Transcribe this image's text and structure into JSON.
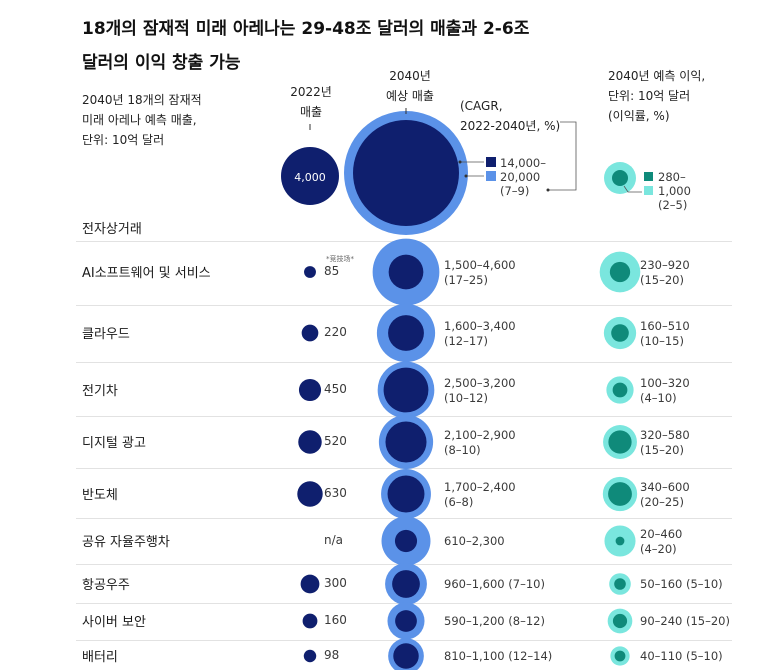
{
  "title": "18개의 잠재적 미래 아레나는 29-48조 달러의 매출과 2-6조 달러의 이익 창출 가능",
  "title_lines": [
    "18개의 잠재적 미래 아레나는 29-48조 달러의 매출과 2-6조",
    "달러의 이익 창출 가능"
  ],
  "legend": {
    "note_lines": [
      "2040년 18개의 잠재적",
      "미래 아레나 예측 매출,",
      "단위: 10억 달러"
    ],
    "col2022_lines": [
      "2022년",
      "매출"
    ],
    "col2040_lines": [
      "2040년",
      "예상 매출"
    ],
    "cagr_lines": [
      "(CAGR,",
      "2022-2040년, %)"
    ],
    "profit_lines": [
      "2040년 예측 이익,",
      "단위: 10억 달러",
      "(이익률, %)"
    ],
    "total_2022": "4,000",
    "total_low": "14,000–",
    "total_high": "20,000",
    "total_cagr": "(7–9)",
    "profit_low": "280–",
    "profit_high": "1,000",
    "profit_margin": "(2–5)"
  },
  "first_category": "전자상거래",
  "colors": {
    "navy": "#0f1f6e",
    "light_blue": "#5b92e8",
    "teal": "#0f8a7a",
    "light_teal": "#7ae6de"
  },
  "chart_data": {
    "type": "bubble-table",
    "rows": [
      {
        "category": "AI소프트웨어 및 서비스",
        "rev2022": 85,
        "rev2022_label": "85",
        "note": "*竞技场*",
        "rev2040_low": 1500,
        "rev2040_high": 4600,
        "range_text": "1,500–4,600",
        "cagr_text": "(17–25)",
        "profit_low": 230,
        "profit_high": 920,
        "profit_text": "230–920",
        "margin_text": "(15–20)"
      },
      {
        "category": "클라우드",
        "rev2022": 220,
        "rev2022_label": "220",
        "rev2040_low": 1600,
        "rev2040_high": 3400,
        "range_text": "1,600–3,400",
        "cagr_text": "(12–17)",
        "profit_low": 160,
        "profit_high": 510,
        "profit_text": "160–510",
        "margin_text": "(10–15)"
      },
      {
        "category": "전기차",
        "rev2022": 450,
        "rev2022_label": "450",
        "rev2040_low": 2500,
        "rev2040_high": 3200,
        "range_text": "2,500–3,200",
        "cagr_text": "(10–12)",
        "profit_low": 100,
        "profit_high": 320,
        "profit_text": "100–320",
        "margin_text": "(4–10)"
      },
      {
        "category": "디지털 광고",
        "rev2022": 520,
        "rev2022_label": "520",
        "rev2040_low": 2100,
        "rev2040_high": 2900,
        "range_text": "2,100–2,900",
        "cagr_text": "(8–10)",
        "profit_low": 320,
        "profit_high": 580,
        "profit_text": "320–580",
        "margin_text": "(15–20)"
      },
      {
        "category": "반도체",
        "rev2022": 630,
        "rev2022_label": "630",
        "rev2040_low": 1700,
        "rev2040_high": 2400,
        "range_text": "1,700–2,400",
        "cagr_text": "(6–8)",
        "profit_low": 340,
        "profit_high": 600,
        "profit_text": "340–600",
        "margin_text": "(20–25)"
      },
      {
        "category": "공유 자율주행차",
        "rev2022": null,
        "rev2022_label": "n/a",
        "rev2040_low": 610,
        "rev2040_high": 2300,
        "range_text": "610–2,300",
        "cagr_text": "",
        "profit_low": 20,
        "profit_high": 460,
        "profit_text": "20–460",
        "margin_text": "(4–20)"
      },
      {
        "category": "항공우주",
        "rev2022": 300,
        "rev2022_label": "300",
        "rev2040_low": 960,
        "rev2040_high": 1600,
        "range_text": "960–1,600 (7–10)",
        "cagr_text": "",
        "profit_low": 50,
        "profit_high": 160,
        "profit_text": "50–160 (5–10)",
        "margin_text": ""
      },
      {
        "category": "사이버 보안",
        "rev2022": 160,
        "rev2022_label": "160",
        "rev2040_low": 590,
        "rev2040_high": 1200,
        "range_text": "590–1,200 (8–12)",
        "cagr_text": "",
        "profit_low": 90,
        "profit_high": 240,
        "profit_text": "90–240 (15–20)",
        "margin_text": ""
      },
      {
        "category": "배터리",
        "rev2022": 98,
        "rev2022_label": "98",
        "rev2040_low": 810,
        "rev2040_high": 1100,
        "range_text": "810–1,100 (12–14)",
        "cagr_text": "",
        "profit_low": 40,
        "profit_high": 110,
        "profit_text": "40–110 (5–10)",
        "margin_text": ""
      }
    ]
  }
}
